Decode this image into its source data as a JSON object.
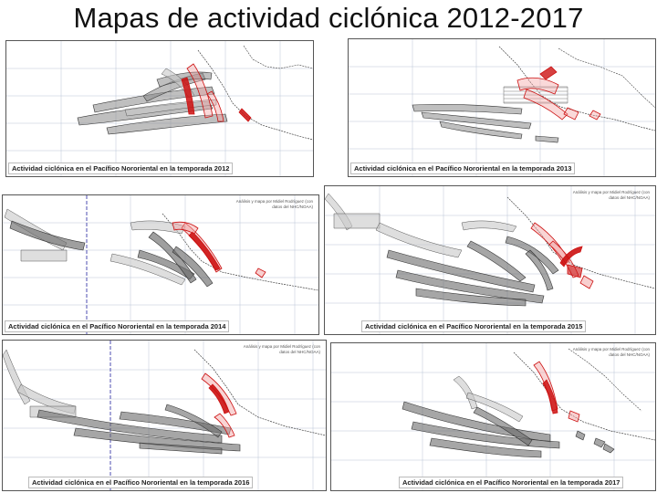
{
  "slide": {
    "title": "Mapas de actividad ciclónica 2012-2017"
  },
  "panels": [
    {
      "season": 2012,
      "caption": "Actividad ciclónica en el Pacífico Nororiental en la temporada 2012",
      "credit": ""
    },
    {
      "season": 2013,
      "caption": "Actividad ciclónica en el Pacífico Nororiental en la temporada 2013",
      "credit": ""
    },
    {
      "season": 2014,
      "caption": "Actividad ciclónica en el Pacífico Nororiental en la temporada 2014",
      "credit": "Análisis y mapa por Midiel Rodríguez (con datos del NHC/NOAA)"
    },
    {
      "season": 2015,
      "caption": "Actividad ciclónica en el Pacífico Nororiental en la temporada 2015",
      "credit": "Análisis y mapa por Midiel Rodríguez (con datos del NHC/NOAA)"
    },
    {
      "season": 2016,
      "caption": "Actividad ciclónica en el Pacífico Nororiental en la temporada 2016",
      "credit": "Análisis y mapa por Midiel Rodríguez (con datos del NHC/NOAA)"
    },
    {
      "season": 2017,
      "caption": "Actividad ciclónica en el Pacífico Nororiental en la temporada 2017",
      "credit": "Análisis y mapa por Midiel Rodríguez (con datos del NHC/NOAA)"
    }
  ],
  "colors": {
    "track_gray": "#6b6b6b",
    "track_light": "#c8c8c8",
    "track_red": "#cc1111",
    "track_red_light": "#f2a0a0",
    "coast": "#444444",
    "grid": "#b9c3d6",
    "dateline": "#3a3aa8"
  }
}
